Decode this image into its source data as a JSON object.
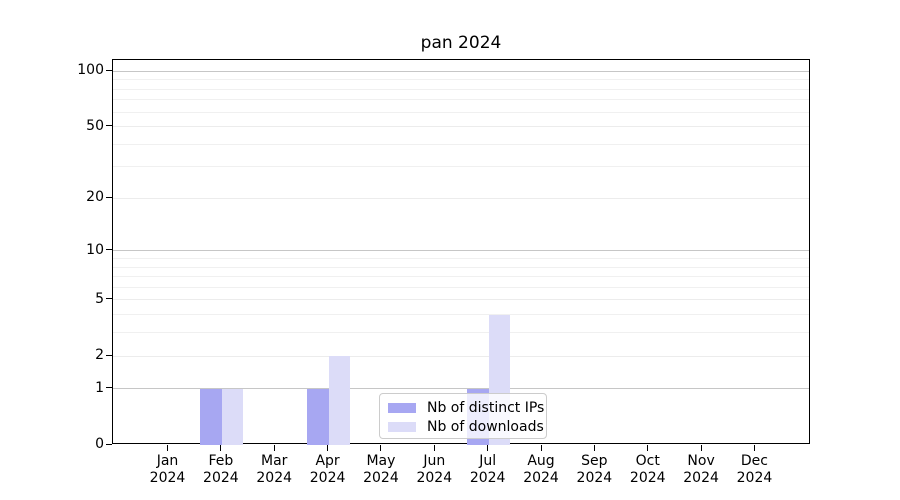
{
  "title": "pan 2024",
  "chart_data": {
    "type": "bar",
    "title": "pan 2024",
    "categories": [
      "Jan 2024",
      "Feb 2024",
      "Mar 2024",
      "Apr 2024",
      "May 2024",
      "Jun 2024",
      "Jul 2024",
      "Aug 2024",
      "Sep 2024",
      "Oct 2024",
      "Nov 2024",
      "Dec 2024"
    ],
    "series": [
      {
        "name": "Nb of distinct IPs",
        "color": "#a7a7f2",
        "values": [
          0,
          1,
          0,
          1,
          0,
          0,
          1,
          0,
          0,
          0,
          0,
          0
        ]
      },
      {
        "name": "Nb of downloads",
        "color": "#dcdcf8",
        "values": [
          0,
          1,
          0,
          2,
          0,
          0,
          4,
          0,
          0,
          0,
          0,
          0
        ]
      }
    ],
    "xlabel": "",
    "ylabel": "",
    "yscale": "log1p",
    "ylim": [
      0,
      115
    ],
    "y_tick_values": [
      0,
      1,
      2,
      5,
      10,
      20,
      50,
      100
    ],
    "y_minor_values": [
      3,
      4,
      6,
      7,
      8,
      9,
      30,
      40,
      60,
      70,
      80,
      90
    ],
    "grid": true,
    "legend_position": "lower center"
  },
  "colors": {
    "grid_decade": "#c6c6c6",
    "grid_labeled": "#ececec",
    "grid_minor": "#f0f0f0",
    "spine": "#000000",
    "legend_border": "#cccccc"
  }
}
